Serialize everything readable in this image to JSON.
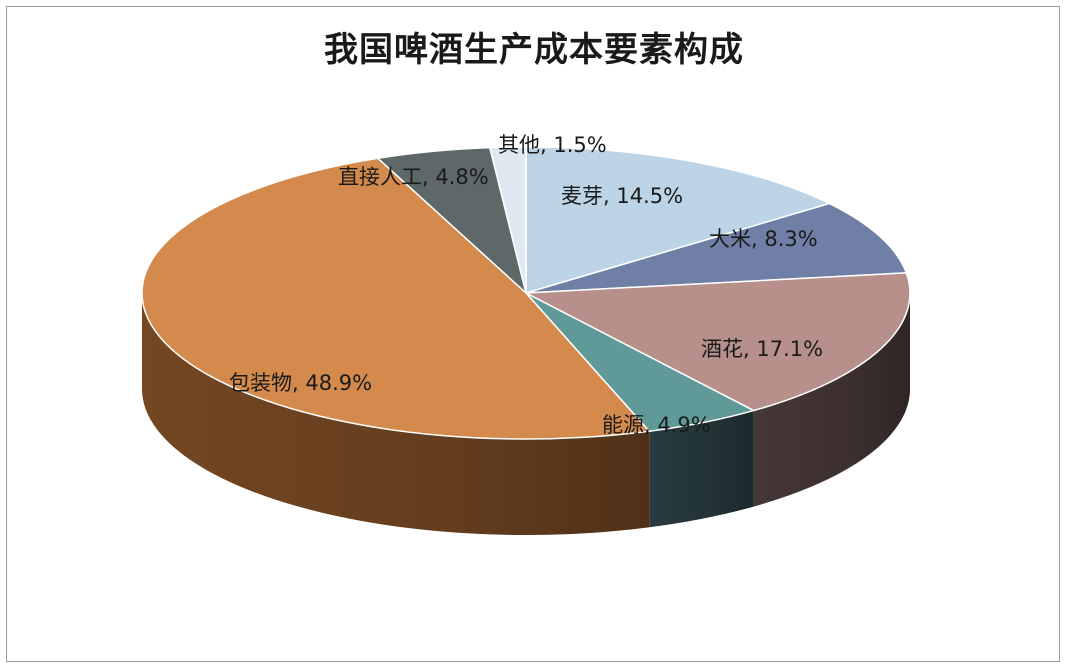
{
  "chart_data": {
    "type": "pie",
    "title": "我国啤酒生产成本要素构成",
    "slices": [
      {
        "name": "麦芽",
        "value": 14.5,
        "label": "麦芽, 14.5%",
        "color": "#bcd4e6",
        "side_color": "#8fa7b8"
      },
      {
        "name": "大米",
        "value": 8.3,
        "label": "大米, 8.3%",
        "color": "#6f7fa6",
        "side_color": "#3f4a66"
      },
      {
        "name": "酒花",
        "value": 17.1,
        "label": "酒花, 17.1%",
        "color": "#b8908b",
        "side_color": "#4a3a3a"
      },
      {
        "name": "能源",
        "value": 4.9,
        "label": "能源, 4.9%",
        "color": "#5f9a98",
        "side_color": "#2a3e42"
      },
      {
        "name": "包装物",
        "value": 48.9,
        "label": "包装物, 48.9%",
        "color": "#d48a4c",
        "side_color": "#7a4a24"
      },
      {
        "name": "直接人工",
        "value": 4.8,
        "label": "直接人工, 4.8%",
        "color": "#5e6868",
        "side_color": "#3a4242"
      },
      {
        "name": "其他",
        "value": 1.5,
        "label": "其他, 1.5%",
        "color": "#dfe9f1",
        "side_color": "#b5c3cf"
      }
    ]
  }
}
